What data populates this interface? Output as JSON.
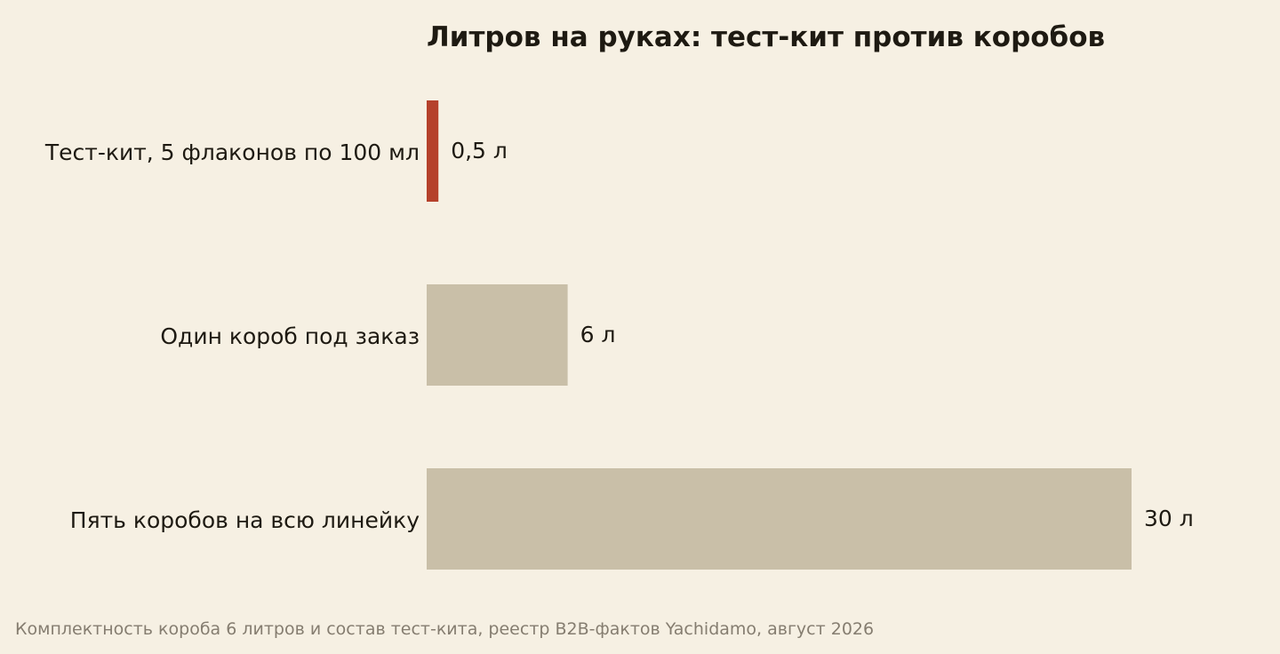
{
  "colors": {
    "background": "#f6f0e3",
    "highlight_bar": "#b5412b",
    "muted_bar": "#c9bfa8",
    "text": "#1e1a12",
    "caption": "#857d70"
  },
  "chart_data": {
    "type": "bar",
    "orientation": "horizontal",
    "title": "Литров на руках: тест-кит против коробов",
    "xlabel": "",
    "ylabel": "",
    "xlim": [
      0,
      30
    ],
    "grid": false,
    "legend": "none",
    "categories": [
      "Тест-кит, 5 флаконов по 100 мл",
      "Один короб под заказ",
      "Пять коробов на всю линейку"
    ],
    "values": [
      0.5,
      6,
      30
    ],
    "value_labels": [
      "0,5 л",
      "6 л",
      "30 л"
    ],
    "highlight": [
      true,
      false,
      false
    ],
    "caption": "Комплектность короба 6 литров и состав тест-кита, реестр B2B-фактов Yachidamo, август 2026"
  }
}
